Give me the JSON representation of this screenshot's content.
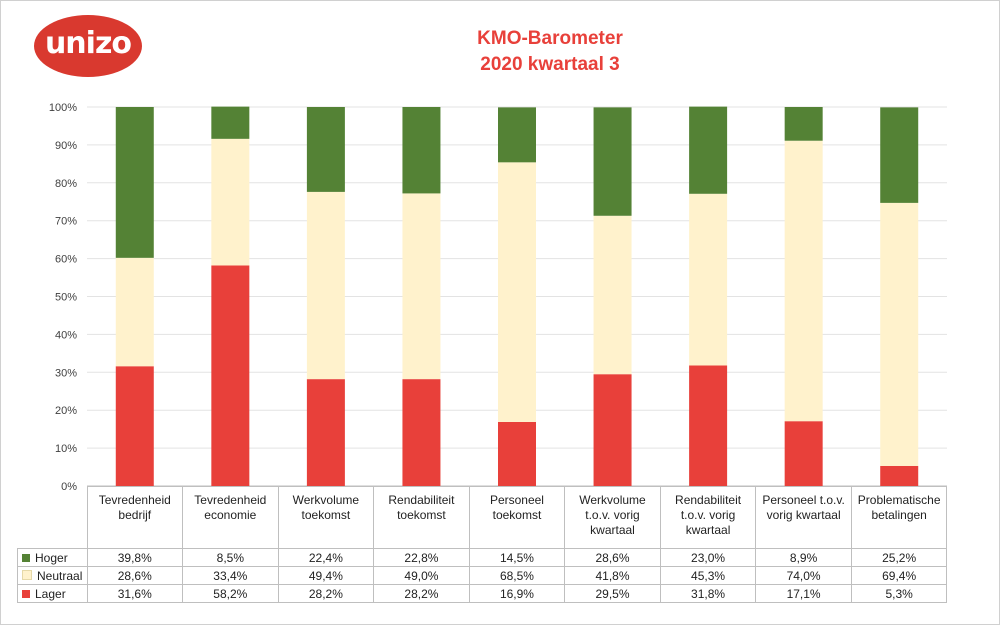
{
  "logo": {
    "text": "unizo",
    "color": "#d9392f"
  },
  "chart_data": {
    "type": "bar",
    "stacked": true,
    "title": "KMO-Barometer",
    "subtitle": "2020 kwartaal 3",
    "categories": [
      [
        "Tevredenheid",
        "bedrijf"
      ],
      [
        "Tevredenheid",
        "economie"
      ],
      [
        "Werkvolume",
        "toekomst"
      ],
      [
        "Rendabiliteit",
        "toekomst"
      ],
      [
        "Personeel",
        "toekomst"
      ],
      [
        "Werkvolume",
        "t.o.v. vorig",
        "kwartaal"
      ],
      [
        "Rendabiliteit",
        "t.o.v. vorig",
        "kwartaal"
      ],
      [
        "Personeel t.o.v.",
        "vorig kwartaal"
      ],
      [
        "Problematische",
        "betalingen"
      ]
    ],
    "series": [
      {
        "name": "Hoger",
        "color": "#548235",
        "values": [
          39.8,
          8.5,
          22.4,
          22.8,
          14.5,
          28.6,
          23.0,
          8.9,
          25.2
        ],
        "labels": [
          "39,8%",
          "8,5%",
          "22,4%",
          "22,8%",
          "14,5%",
          "28,6%",
          "23,0%",
          "8,9%",
          "25,2%"
        ]
      },
      {
        "name": "Neutraal",
        "color": "#fff2cc",
        "values": [
          28.6,
          33.4,
          49.4,
          49.0,
          68.5,
          41.8,
          45.3,
          74.0,
          69.4
        ],
        "labels": [
          "28,6%",
          "33,4%",
          "49,4%",
          "49,0%",
          "68,5%",
          "41,8%",
          "45,3%",
          "74,0%",
          "69,4%"
        ]
      },
      {
        "name": "Lager",
        "color": "#e8403a",
        "values": [
          31.6,
          58.2,
          28.2,
          28.2,
          16.9,
          29.5,
          31.8,
          17.1,
          5.3
        ],
        "labels": [
          "31,6%",
          "58,2%",
          "28,2%",
          "28,2%",
          "16,9%",
          "29,5%",
          "31,8%",
          "17,1%",
          "5,3%"
        ]
      }
    ],
    "stack_order_bottom_to_top": [
      "Lager",
      "Neutraal",
      "Hoger"
    ],
    "yticks": [
      "0%",
      "10%",
      "20%",
      "30%",
      "40%",
      "50%",
      "60%",
      "70%",
      "80%",
      "90%",
      "100%"
    ],
    "ylim": [
      0,
      100
    ],
    "grid": true,
    "legend": "data-table-bottom"
  }
}
